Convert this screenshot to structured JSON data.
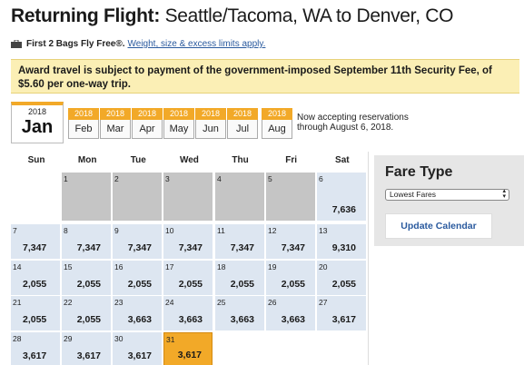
{
  "header": {
    "title_bold": "Returning Flight:",
    "title_rest": " Seattle/Tacoma, WA to Denver, CO"
  },
  "bags": {
    "icon": "suitcase-icon",
    "label": "First 2 Bags Fly Free®.",
    "link": "Weight, size & excess limits apply."
  },
  "notice": {
    "text": "Award travel is subject to payment of the government-imposed September 11th Security Fee, of $5.60 per one-way trip."
  },
  "month_selector": {
    "selected": {
      "year": "2018",
      "month": "Jan"
    },
    "tabs": [
      {
        "year": "2018",
        "month": "Feb"
      },
      {
        "year": "2018",
        "month": "Mar"
      },
      {
        "year": "2018",
        "month": "Apr"
      },
      {
        "year": "2018",
        "month": "May"
      },
      {
        "year": "2018",
        "month": "Jun"
      },
      {
        "year": "2018",
        "month": "Jul"
      },
      {
        "year": "2018",
        "month": "Aug"
      }
    ],
    "accepting_line1": "Now accepting reservations",
    "accepting_line2": "through August 6, 2018."
  },
  "calendar": {
    "weekdays": [
      "Sun",
      "Mon",
      "Tue",
      "Wed",
      "Thu",
      "Fri",
      "Sat"
    ],
    "days": [
      {
        "day": "1",
        "price": "",
        "state": "unavailable"
      },
      {
        "day": "2",
        "price": "",
        "state": "unavailable"
      },
      {
        "day": "3",
        "price": "",
        "state": "unavailable"
      },
      {
        "day": "4",
        "price": "",
        "state": "unavailable"
      },
      {
        "day": "5",
        "price": "",
        "state": "unavailable"
      },
      {
        "day": "6",
        "price": "7,636",
        "state": "available"
      },
      {
        "day": "7",
        "price": "7,347",
        "state": "available"
      },
      {
        "day": "8",
        "price": "7,347",
        "state": "available"
      },
      {
        "day": "9",
        "price": "7,347",
        "state": "available"
      },
      {
        "day": "10",
        "price": "7,347",
        "state": "available"
      },
      {
        "day": "11",
        "price": "7,347",
        "state": "available"
      },
      {
        "day": "12",
        "price": "7,347",
        "state": "available"
      },
      {
        "day": "13",
        "price": "9,310",
        "state": "available"
      },
      {
        "day": "14",
        "price": "2,055",
        "state": "available"
      },
      {
        "day": "15",
        "price": "2,055",
        "state": "available"
      },
      {
        "day": "16",
        "price": "2,055",
        "state": "available"
      },
      {
        "day": "17",
        "price": "2,055",
        "state": "available"
      },
      {
        "day": "18",
        "price": "2,055",
        "state": "available"
      },
      {
        "day": "19",
        "price": "2,055",
        "state": "available"
      },
      {
        "day": "20",
        "price": "2,055",
        "state": "available"
      },
      {
        "day": "21",
        "price": "2,055",
        "state": "available"
      },
      {
        "day": "22",
        "price": "2,055",
        "state": "available"
      },
      {
        "day": "23",
        "price": "3,663",
        "state": "available"
      },
      {
        "day": "24",
        "price": "3,663",
        "state": "available"
      },
      {
        "day": "25",
        "price": "3,663",
        "state": "available"
      },
      {
        "day": "26",
        "price": "3,663",
        "state": "available"
      },
      {
        "day": "27",
        "price": "3,617",
        "state": "available"
      },
      {
        "day": "28",
        "price": "3,617",
        "state": "available"
      },
      {
        "day": "29",
        "price": "3,617",
        "state": "available"
      },
      {
        "day": "30",
        "price": "3,617",
        "state": "available"
      },
      {
        "day": "31",
        "price": "3,617",
        "state": "selected"
      }
    ],
    "colors": {
      "available": "#dde6f1",
      "unavailable": "#c5c5c5",
      "selected": "#f2a928"
    }
  },
  "fare_panel": {
    "title": "Fare Type",
    "select_value": "Lowest Fares",
    "update_button": "Update Calendar"
  }
}
